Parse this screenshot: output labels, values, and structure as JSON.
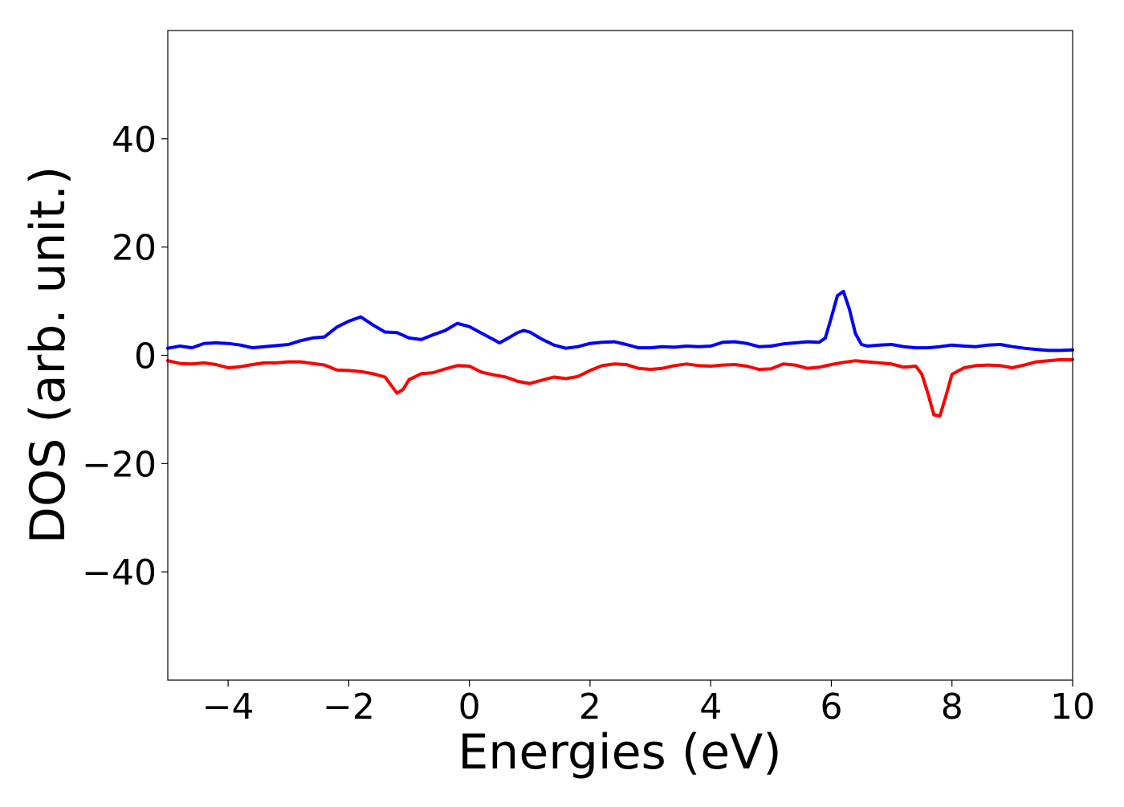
{
  "chart_data": {
    "type": "line",
    "title": "",
    "xlabel": "Energies (eV)",
    "ylabel": "DOS (arb. unit.)",
    "xlim": [
      -5,
      10
    ],
    "ylim": [
      -60,
      60
    ],
    "grid": false,
    "x_ticks": [
      -4,
      -2,
      0,
      2,
      4,
      6,
      8,
      10
    ],
    "x_tick_labels": [
      "−4",
      "−2",
      "0",
      "2",
      "4",
      "6",
      "8",
      "10"
    ],
    "y_ticks": [
      -40,
      -20,
      0,
      20,
      40
    ],
    "y_tick_labels": [
      "−40",
      "−20",
      "0",
      "20",
      "40"
    ],
    "series": [
      {
        "color": "#0000ff",
        "points": [
          [
            -5.0,
            1.3
          ],
          [
            -4.8,
            1.7
          ],
          [
            -4.6,
            1.4
          ],
          [
            -4.4,
            2.2
          ],
          [
            -4.2,
            2.3
          ],
          [
            -4.0,
            2.2
          ],
          [
            -3.8,
            1.9
          ],
          [
            -3.6,
            1.4
          ],
          [
            -3.4,
            1.6
          ],
          [
            -3.2,
            1.8
          ],
          [
            -3.0,
            2.0
          ],
          [
            -2.8,
            2.7
          ],
          [
            -2.6,
            3.2
          ],
          [
            -2.4,
            3.4
          ],
          [
            -2.2,
            5.2
          ],
          [
            -2.0,
            6.3
          ],
          [
            -1.8,
            7.1
          ],
          [
            -1.6,
            5.6
          ],
          [
            -1.4,
            4.3
          ],
          [
            -1.2,
            4.2
          ],
          [
            -1.0,
            3.2
          ],
          [
            -0.8,
            2.9
          ],
          [
            -0.6,
            3.8
          ],
          [
            -0.4,
            4.6
          ],
          [
            -0.2,
            5.9
          ],
          [
            0.0,
            5.3
          ],
          [
            0.2,
            4.1
          ],
          [
            0.4,
            2.9
          ],
          [
            0.5,
            2.3
          ],
          [
            0.6,
            2.9
          ],
          [
            0.8,
            4.2
          ],
          [
            0.9,
            4.6
          ],
          [
            1.0,
            4.3
          ],
          [
            1.2,
            3.0
          ],
          [
            1.4,
            1.9
          ],
          [
            1.6,
            1.3
          ],
          [
            1.8,
            1.6
          ],
          [
            2.0,
            2.2
          ],
          [
            2.2,
            2.4
          ],
          [
            2.4,
            2.5
          ],
          [
            2.6,
            2.0
          ],
          [
            2.8,
            1.4
          ],
          [
            3.0,
            1.4
          ],
          [
            3.2,
            1.6
          ],
          [
            3.4,
            1.5
          ],
          [
            3.6,
            1.7
          ],
          [
            3.8,
            1.6
          ],
          [
            4.0,
            1.7
          ],
          [
            4.2,
            2.4
          ],
          [
            4.4,
            2.5
          ],
          [
            4.6,
            2.2
          ],
          [
            4.8,
            1.6
          ],
          [
            5.0,
            1.7
          ],
          [
            5.2,
            2.1
          ],
          [
            5.4,
            2.3
          ],
          [
            5.6,
            2.5
          ],
          [
            5.8,
            2.4
          ],
          [
            5.9,
            3.2
          ],
          [
            6.0,
            7.0
          ],
          [
            6.1,
            11.0
          ],
          [
            6.2,
            11.8
          ],
          [
            6.3,
            8.5
          ],
          [
            6.4,
            4.0
          ],
          [
            6.5,
            2.0
          ],
          [
            6.6,
            1.7
          ],
          [
            6.8,
            1.9
          ],
          [
            7.0,
            2.0
          ],
          [
            7.2,
            1.6
          ],
          [
            7.4,
            1.4
          ],
          [
            7.6,
            1.4
          ],
          [
            7.8,
            1.6
          ],
          [
            8.0,
            1.9
          ],
          [
            8.2,
            1.7
          ],
          [
            8.4,
            1.6
          ],
          [
            8.6,
            1.9
          ],
          [
            8.8,
            2.0
          ],
          [
            9.0,
            1.6
          ],
          [
            9.2,
            1.3
          ],
          [
            9.4,
            1.1
          ],
          [
            9.6,
            0.9
          ],
          [
            9.8,
            0.9
          ],
          [
            10.0,
            1.0
          ]
        ]
      },
      {
        "color": "#ff0000",
        "points": [
          [
            -5.0,
            -1.0
          ],
          [
            -4.8,
            -1.5
          ],
          [
            -4.6,
            -1.6
          ],
          [
            -4.4,
            -1.4
          ],
          [
            -4.2,
            -1.7
          ],
          [
            -4.0,
            -2.3
          ],
          [
            -3.8,
            -2.1
          ],
          [
            -3.6,
            -1.7
          ],
          [
            -3.4,
            -1.4
          ],
          [
            -3.2,
            -1.4
          ],
          [
            -3.0,
            -1.2
          ],
          [
            -2.8,
            -1.2
          ],
          [
            -2.6,
            -1.5
          ],
          [
            -2.4,
            -1.8
          ],
          [
            -2.2,
            -2.7
          ],
          [
            -2.0,
            -2.8
          ],
          [
            -1.8,
            -3.0
          ],
          [
            -1.6,
            -3.4
          ],
          [
            -1.4,
            -4.0
          ],
          [
            -1.3,
            -5.5
          ],
          [
            -1.2,
            -7.0
          ],
          [
            -1.1,
            -6.3
          ],
          [
            -1.0,
            -4.5
          ],
          [
            -0.8,
            -3.4
          ],
          [
            -0.6,
            -3.2
          ],
          [
            -0.4,
            -2.5
          ],
          [
            -0.2,
            -1.9
          ],
          [
            0.0,
            -2.0
          ],
          [
            0.2,
            -3.1
          ],
          [
            0.4,
            -3.6
          ],
          [
            0.6,
            -4.0
          ],
          [
            0.8,
            -4.8
          ],
          [
            1.0,
            -5.2
          ],
          [
            1.2,
            -4.6
          ],
          [
            1.4,
            -4.0
          ],
          [
            1.6,
            -4.3
          ],
          [
            1.8,
            -3.9
          ],
          [
            2.0,
            -2.8
          ],
          [
            2.2,
            -1.9
          ],
          [
            2.4,
            -1.6
          ],
          [
            2.6,
            -1.7
          ],
          [
            2.8,
            -2.4
          ],
          [
            3.0,
            -2.6
          ],
          [
            3.2,
            -2.4
          ],
          [
            3.4,
            -1.9
          ],
          [
            3.6,
            -1.6
          ],
          [
            3.8,
            -1.9
          ],
          [
            4.0,
            -2.0
          ],
          [
            4.2,
            -1.8
          ],
          [
            4.4,
            -1.7
          ],
          [
            4.6,
            -2.0
          ],
          [
            4.8,
            -2.6
          ],
          [
            5.0,
            -2.5
          ],
          [
            5.2,
            -1.6
          ],
          [
            5.4,
            -1.8
          ],
          [
            5.6,
            -2.4
          ],
          [
            5.8,
            -2.2
          ],
          [
            6.0,
            -1.7
          ],
          [
            6.2,
            -1.3
          ],
          [
            6.4,
            -1.0
          ],
          [
            6.6,
            -1.2
          ],
          [
            6.8,
            -1.4
          ],
          [
            7.0,
            -1.6
          ],
          [
            7.2,
            -2.2
          ],
          [
            7.4,
            -2.0
          ],
          [
            7.5,
            -3.5
          ],
          [
            7.6,
            -7.0
          ],
          [
            7.7,
            -11.0
          ],
          [
            7.8,
            -11.2
          ],
          [
            7.9,
            -7.5
          ],
          [
            8.0,
            -3.5
          ],
          [
            8.2,
            -2.3
          ],
          [
            8.4,
            -1.9
          ],
          [
            8.6,
            -1.8
          ],
          [
            8.8,
            -1.9
          ],
          [
            9.0,
            -2.3
          ],
          [
            9.2,
            -1.8
          ],
          [
            9.4,
            -1.2
          ],
          [
            9.6,
            -1.0
          ],
          [
            9.8,
            -0.8
          ],
          [
            10.0,
            -0.8
          ]
        ]
      }
    ]
  }
}
